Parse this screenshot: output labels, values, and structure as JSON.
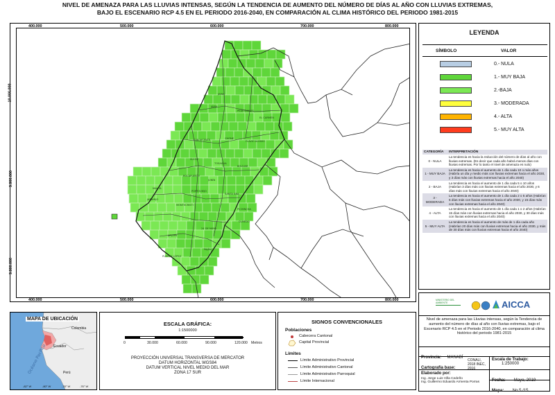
{
  "title": {
    "line1": "NIVEL DE AMENAZA PARA LAS LLUVIAS INTENSAS, SEGÚN LA TENDENCIA DE AUMENTO DEL NÚMERO DE DÍAS AL AÑO CON LLUVIAS EXTREMAS,",
    "line2": "BAJO EL ESCENARIO RCP 4.5 EN EL PERIODO 2016-2040, EN COMPARACIÓN AL CLIMA HISTÓRICO DEL PERIODO 1981-2015"
  },
  "map": {
    "x_ticks": [
      "400.000",
      "500.000",
      "600.000",
      "700.000",
      "800.000"
    ],
    "y_ticks": [
      "10.000.000",
      "9.900.000",
      "9.800.000"
    ],
    "colors": {
      "very_low": "#5fd63a",
      "low": "#7be854",
      "grid_line": "#c8f0b8",
      "boundary": "#1a1a1a"
    },
    "place_labels": [
      "JAMA",
      "PEDERNALES",
      "CHONE",
      "FLAVIO ALFARO",
      "EL CARMEN",
      "SAN VICENTE",
      "SUCRE",
      "TOSAGUA",
      "BOLÍVAR",
      "ROCAFUERTE",
      "PORTOVIEJO",
      "MANTA",
      "JARAMIJÓ",
      "MONTECRISTI",
      "SANTA ANA",
      "JUNÍN",
      "PICHINCHA",
      "OLMEDO",
      "24 DE MAYO",
      "JIPIJAPA",
      "PUERTO LÓPEZ",
      "PAJÁN",
      "JAMA"
    ]
  },
  "legend": {
    "title": "LEYENDA",
    "col_symbol": "SÍMBOLO",
    "col_value": "VALOR",
    "items": [
      {
        "label": "0.- NULA",
        "color": "#b7cde3"
      },
      {
        "label": "1.- MUY BAJA",
        "color": "#5fd63a"
      },
      {
        "label": "2.-BAJA",
        "color": "#7be854"
      },
      {
        "label": "3.- MODERADA",
        "color": "#ffff3c"
      },
      {
        "label": "4.- ALTA",
        "color": "#ffb400"
      },
      {
        "label": "5.- MUY ALTA",
        "color": "#ff3c1e"
      }
    ],
    "interp_head": {
      "cat": "CATEGORÍA",
      "text": "INTERPRETACIÓN"
    },
    "interp_rows": [
      {
        "cat": "0 - NULA",
        "text": "La tendencia es hacia la reducción del número de días al año con lluvias extremas. (Es decir que cada año habrá menos días con lluvias extremas. Por lo tanto el nivel de amenaza es nulo)"
      },
      {
        "cat": "1 - MUY BAJA",
        "text": "La tendencia es hacia el aumento de 1 día cada 10 o más años (Habría un día y medio más con lluvias extremas hacia el año 2030, y 3 días más con lluvias extremas hacia el año 2040)"
      },
      {
        "cat": "2 - BAJA",
        "text": "La tendencia es hacia el aumento de 1 día cada 5 o 10 años (Habrían 3 días más con lluvias extremas hacia el año 2030, y 6 días más con lluvias extremas hacia el año 2040)"
      },
      {
        "cat": "3 - MODERADA",
        "text": "La tendencia es hacia el aumento de 1 día cada 2 o 5 años (Habrían 6 días más con lluvias extremas hacia el año 2030, y 15 días más con lluvias extremas hacia el año 2040)"
      },
      {
        "cat": "4 - ALTA",
        "text": "La tendencia es hacia el aumento de 1 día cada 1 o 2 años (Habrían 15 días más con lluvias extremas hacia el año 2030, y 30 días más con lluvias extremas hacia el año 2040)"
      },
      {
        "cat": "5 - MUY ALTA",
        "text": "La tendencia es hacia el aumento de más de 1 día cada año (Habrían 20 días más con lluvias extremas hacia el año 2030, y más de 30 días más con lluvias extremas hacia el año 2040)"
      }
    ]
  },
  "institution": {
    "logo_text": "AICCA",
    "ministry": "MINISTERIO DEL AMBIENTE",
    "description": "Nivel de amenaza para las Lluvias intensas, según la Tendencia de aumento del número de días al año con lluvias extremas, bajo el Escenario RCP 4.5 en el Periodo 2016-2040, en comparación al clima histórico del periodo 1981-2015",
    "provincia_label": "Provincia:",
    "provincia": "MANABÍ",
    "carto_label": "Cartografía base:",
    "carto_value": "CONALI, 2018 INEC, 2016",
    "escala_label": "Escala de Trabajo:",
    "escala_value": "1:250000",
    "elaborado_label": "Elaborado por:",
    "elaborado_1": "Ing. Jorge Luis Villa Cedeño",
    "elaborado_2": "Ing. Guillermo Eduardo Armenta Porras",
    "fecha_label": "Fecha:",
    "fecha": "Mayo, 2019",
    "mapa_label": "Mapa:",
    "mapa": "No 5 /15"
  },
  "locator": {
    "title": "MAPA DE UBICACIÓN",
    "countries": [
      "Colombia",
      "Ecuador",
      "Perú"
    ],
    "ocean": "Océano Pacífico",
    "lon_ticks": [
      "-82° W",
      "-80° W",
      "-78° W",
      "-76° W"
    ]
  },
  "scale": {
    "title": "ESCALA GRÁFICA:",
    "ratio": "1:1500000",
    "labels": [
      "0",
      "30.000",
      "60.000",
      "90.000",
      "120.000"
    ],
    "unit": "Metros",
    "proj1": "PROYECCIÓN UNIVERSAL TRANSVERSA DE MERCATOR",
    "proj2": "DATUM HORIZONTAL WGS84",
    "proj3": "DATUM VERTICAL NIVEL MEDIO DEL MAR",
    "proj4": "ZONA 17 SUR"
  },
  "signs": {
    "title": "SIGNOS CONVENCIONALES",
    "pob_title": "Poblaciones",
    "cabecera": "Cabecera Cantonal",
    "capital": "Capital Provincial",
    "lim_title": "Límites",
    "lim_prov": "Límite Administrativo Provincial",
    "lim_cant": "Límite Administrativo Cantonal",
    "lim_parr": "Límite Administrativo Parroquial",
    "lim_int": "Límite Internacional"
  }
}
